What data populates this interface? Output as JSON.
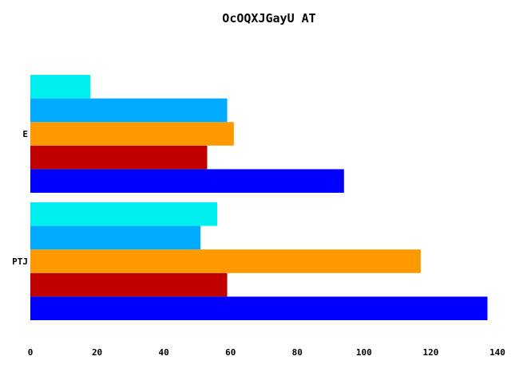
{
  "chart_data": {
    "type": "bar",
    "orientation": "horizontal",
    "title": "OcOQXJGayU AT",
    "xlabel": "",
    "ylabel": "",
    "categories": [
      "PTJ",
      "E"
    ],
    "xlim": [
      0,
      140
    ],
    "x_ticks": [
      "0",
      "20",
      "40",
      "60",
      "80",
      "100",
      "120",
      "140"
    ],
    "grid": false,
    "legend": "none",
    "series": [
      {
        "color": "#0000ff",
        "values": [
          137,
          94
        ]
      },
      {
        "color": "#c00000",
        "values": [
          59,
          53
        ]
      },
      {
        "color": "#ff9900",
        "values": [
          117,
          61
        ]
      },
      {
        "color": "#00aaff",
        "values": [
          51,
          59
        ]
      },
      {
        "color": "#00f0f0",
        "values": [
          56,
          18
        ]
      }
    ]
  }
}
